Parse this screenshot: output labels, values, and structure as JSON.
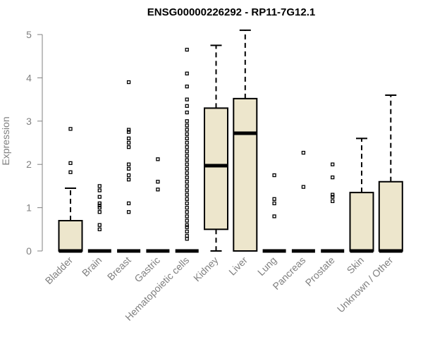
{
  "chart_data": {
    "type": "box",
    "title": "ENSG00000226292 - RP11-7G12.1",
    "xlabel": "",
    "ylabel": "Expression",
    "ylim": [
      0,
      5.1
    ],
    "yticks": [
      0,
      1,
      2,
      3,
      4,
      5
    ],
    "grid": false,
    "colors": {
      "box_fill": "#ede6cc",
      "stroke": "#000000",
      "axis_text": "#808080",
      "title": "#000000"
    },
    "categories": [
      "Bladder",
      "Brain",
      "Breast",
      "Gastric",
      "Hematopoietic cells",
      "Kidney",
      "Liver",
      "Lung",
      "Pancreas",
      "Prostate",
      "Skin",
      "Unknown / Other"
    ],
    "boxes": [
      {
        "name": "Bladder",
        "min": 0,
        "q1": 0,
        "median": 0,
        "q3": 0.7,
        "max": 1.45,
        "outliers": [
          1.82,
          2.03,
          2.82
        ]
      },
      {
        "name": "Brain",
        "min": 0,
        "q1": 0,
        "median": 0,
        "q3": 0,
        "max": 0,
        "outliers": [
          0.5,
          0.6,
          0.9,
          1.0,
          1.05,
          1.1,
          1.25,
          1.4,
          1.5
        ]
      },
      {
        "name": "Breast",
        "min": 0,
        "q1": 0,
        "median": 0,
        "q3": 0,
        "max": 0,
        "outliers": [
          0.9,
          1.1,
          1.65,
          1.75,
          1.9,
          2.0,
          2.4,
          2.5,
          2.6,
          2.75,
          2.8,
          3.9
        ]
      },
      {
        "name": "Gastric",
        "min": 0,
        "q1": 0,
        "median": 0,
        "q3": 0,
        "max": 0,
        "outliers": [
          1.42,
          1.6,
          2.12
        ]
      },
      {
        "name": "Hematopoietic cells",
        "min": 0,
        "q1": 0,
        "median": 0,
        "q3": 0,
        "max": 0,
        "outliers": [
          0.28,
          0.35,
          0.45,
          0.55,
          0.6,
          0.7,
          0.8,
          0.9,
          1.0,
          1.1,
          1.2,
          1.3,
          1.4,
          1.5,
          1.6,
          1.7,
          1.8,
          1.9,
          2.0,
          2.1,
          2.2,
          2.3,
          2.4,
          2.5,
          2.6,
          2.7,
          2.8,
          2.9,
          3.0,
          3.2,
          3.35,
          3.5,
          3.8,
          4.1,
          4.65
        ]
      },
      {
        "name": "Kidney",
        "min": 0,
        "q1": 0.5,
        "median": 1.97,
        "q3": 3.3,
        "max": 4.75,
        "outliers": []
      },
      {
        "name": "Liver",
        "min": 0,
        "q1": 0,
        "median": 2.72,
        "q3": 3.52,
        "max": 5.1,
        "outliers": []
      },
      {
        "name": "Lung",
        "min": 0,
        "q1": 0,
        "median": 0,
        "q3": 0,
        "max": 0,
        "outliers": [
          0.8,
          1.1,
          1.2,
          1.75
        ]
      },
      {
        "name": "Pancreas",
        "min": 0,
        "q1": 0,
        "median": 0,
        "q3": 0,
        "max": 0,
        "outliers": [
          1.48,
          2.27
        ]
      },
      {
        "name": "Prostate",
        "min": 0,
        "q1": 0,
        "median": 0,
        "q3": 0,
        "max": 0,
        "outliers": [
          1.15,
          1.25,
          1.3,
          1.7,
          2.0
        ]
      },
      {
        "name": "Skin",
        "min": 0,
        "q1": 0,
        "median": 0,
        "q3": 1.35,
        "max": 2.6,
        "outliers": []
      },
      {
        "name": "Unknown / Other",
        "min": 0,
        "q1": 0,
        "median": 0,
        "q3": 1.6,
        "max": 3.6,
        "outliers": []
      }
    ]
  }
}
